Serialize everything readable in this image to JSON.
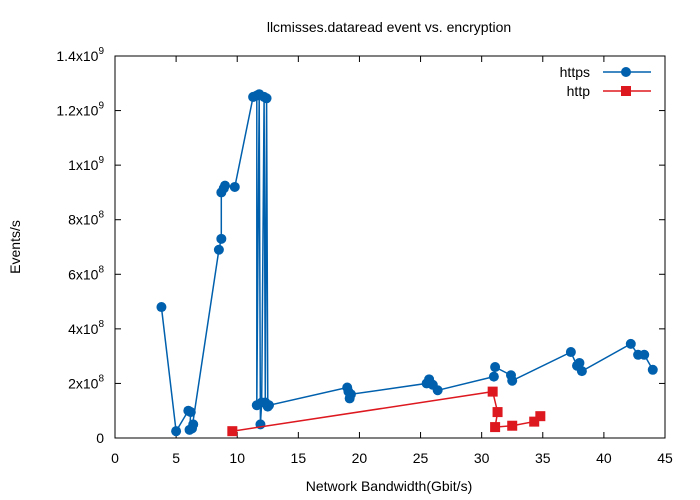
{
  "chart_data": {
    "type": "line",
    "title": "llcmisses.dataread event vs. encryption",
    "xlabel": "Network Bandwidth(Gbit/s)",
    "ylabel": "Events/s",
    "xlim": [
      0,
      45
    ],
    "ylim": [
      0,
      1400000000
    ],
    "x_ticks": [
      {
        "value": 0,
        "label": "0"
      },
      {
        "value": 5,
        "label": "5"
      },
      {
        "value": 10,
        "label": "10"
      },
      {
        "value": 15,
        "label": "15"
      },
      {
        "value": 20,
        "label": "20"
      },
      {
        "value": 25,
        "label": "25"
      },
      {
        "value": 30,
        "label": "30"
      },
      {
        "value": 35,
        "label": "35"
      },
      {
        "value": 40,
        "label": "40"
      },
      {
        "value": 45,
        "label": "45"
      }
    ],
    "y_ticks": [
      {
        "value": 0,
        "mantissa": "0",
        "exponent": ""
      },
      {
        "value": 200000000,
        "mantissa": "2x10",
        "exponent": "8"
      },
      {
        "value": 400000000,
        "mantissa": "4x10",
        "exponent": "8"
      },
      {
        "value": 600000000,
        "mantissa": "6x10",
        "exponent": "8"
      },
      {
        "value": 800000000,
        "mantissa": "8x10",
        "exponent": "8"
      },
      {
        "value": 1000000000,
        "mantissa": "1x10",
        "exponent": "9"
      },
      {
        "value": 1200000000,
        "mantissa": "1.2x10",
        "exponent": "9"
      },
      {
        "value": 1400000000,
        "mantissa": "1.4x10",
        "exponent": "9"
      }
    ],
    "grid": false,
    "legend_position": "top-right",
    "series": [
      {
        "name": "https",
        "color": "#0060ad",
        "marker": "circle",
        "points": [
          [
            3.8,
            480000000
          ],
          [
            5.0,
            25000000
          ],
          [
            6.0,
            100000000
          ],
          [
            6.2,
            95000000
          ],
          [
            6.1,
            30000000
          ],
          [
            6.4,
            50000000
          ],
          [
            6.3,
            35000000
          ],
          [
            8.5,
            690000000
          ],
          [
            8.7,
            730000000
          ],
          [
            8.7,
            900000000
          ],
          [
            8.9,
            915000000
          ],
          [
            9.0,
            925000000
          ],
          [
            9.8,
            920000000
          ],
          [
            11.3,
            1250000000
          ],
          [
            11.6,
            1255000000
          ],
          [
            11.6,
            120000000
          ],
          [
            11.8,
            1260000000
          ],
          [
            11.9,
            50000000
          ],
          [
            12.0,
            130000000
          ],
          [
            12.2,
            1250000000
          ],
          [
            12.3,
            130000000
          ],
          [
            12.4,
            1245000000
          ],
          [
            12.5,
            115000000
          ],
          [
            12.6,
            120000000
          ],
          [
            19.0,
            185000000
          ],
          [
            19.1,
            170000000
          ],
          [
            19.2,
            145000000
          ],
          [
            19.3,
            160000000
          ],
          [
            25.5,
            200000000
          ],
          [
            25.7,
            215000000
          ],
          [
            26.0,
            195000000
          ],
          [
            26.4,
            175000000
          ],
          [
            31.0,
            225000000
          ],
          [
            31.1,
            260000000
          ],
          [
            32.4,
            230000000
          ],
          [
            32.5,
            210000000
          ],
          [
            37.3,
            315000000
          ],
          [
            37.8,
            265000000
          ],
          [
            38.0,
            275000000
          ],
          [
            38.2,
            245000000
          ],
          [
            42.2,
            345000000
          ],
          [
            42.8,
            305000000
          ],
          [
            43.3,
            305000000
          ],
          [
            44.0,
            250000000
          ]
        ]
      },
      {
        "name": "http",
        "color": "#dd181f",
        "marker": "square",
        "points": [
          [
            9.6,
            25000000
          ],
          [
            30.9,
            170000000
          ],
          [
            31.3,
            95000000
          ],
          [
            31.1,
            40000000
          ],
          [
            32.5,
            45000000
          ],
          [
            34.3,
            60000000
          ],
          [
            34.8,
            80000000
          ]
        ]
      }
    ]
  }
}
